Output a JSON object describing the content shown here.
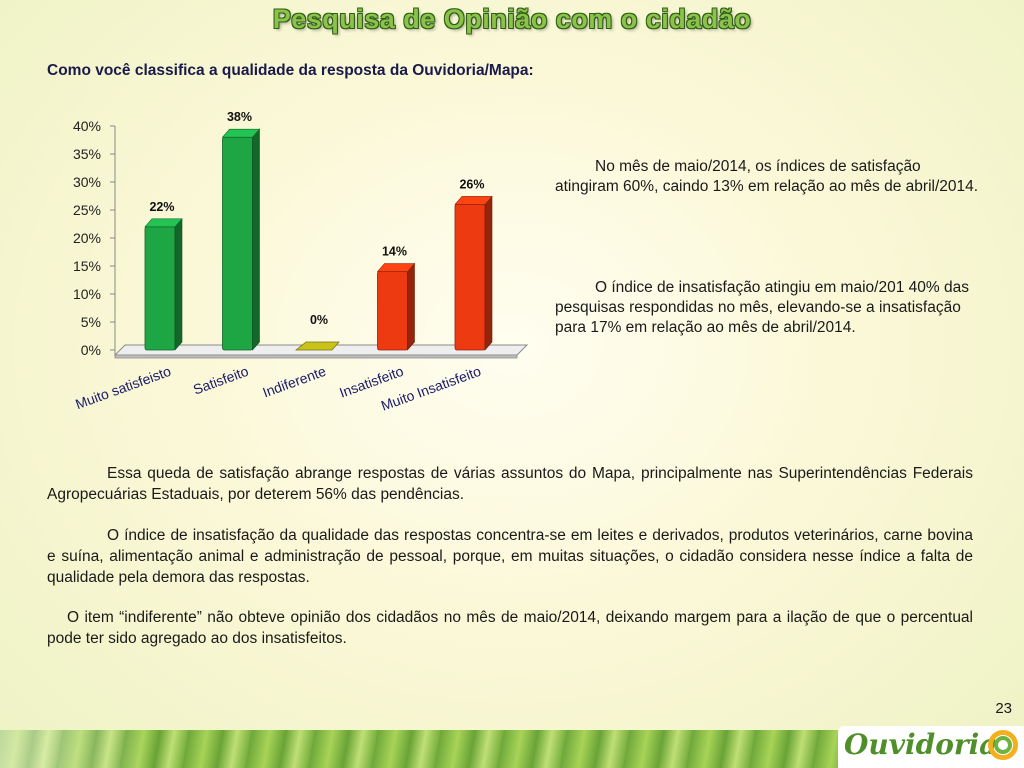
{
  "title": "Pesquisa de Opinião com o cidadão",
  "question": "Como você classifica a qualidade da resposta da Ouvidoria/Mapa:",
  "chart_data": {
    "type": "bar",
    "categories": [
      "Muito satisfeisto",
      "Satisfeito",
      "Indiferente",
      "Insatisfeito",
      "Muito Insatisfeito"
    ],
    "values": [
      22,
      38,
      0,
      14,
      26
    ],
    "data_labels": [
      "22%",
      "38%",
      "0%",
      "14%",
      "26%"
    ],
    "colors": [
      "#1ea645",
      "#1ea645",
      "#c8c21a",
      "#ee3a10",
      "#ee3a10"
    ],
    "y_ticks": [
      "0%",
      "5%",
      "10%",
      "15%",
      "20%",
      "25%",
      "30%",
      "35%",
      "40%"
    ],
    "ylim": [
      0,
      40
    ],
    "grid": false,
    "style": "3d-column"
  },
  "side_text_1": "No mês de maio/2014, os  índices de satisfação atingiram 60%, caindo 13% em relação ao mês de abril/2014.",
  "side_text_2": "O índice de insatisfação atingiu em maio/201 40% das pesquisas respondidas no mês, elevando-se a insatisfação para 17% em relação ao mês de abril/2014.",
  "paragraph_1": "Essa queda de satisfação abrange respostas de várias assuntos do Mapa, principalmente nas Superintendências Federais Agropecuárias Estaduais, por deterem 56% das pendências.",
  "paragraph_2": "O índice de insatisfação da qualidade das respostas concentra-se em leites e derivados, produtos veterinários, carne bovina e suína, alimentação animal e administração de pessoal, porque, em muitas situações, o cidadão considera nesse índice a falta de qualidade pela demora das respostas.",
  "paragraph_3": "O item “indiferente” não obteve opinião dos cidadãos no mês de maio/2014, deixando margem para a ilação de que o percentual pode ter sido agregado ao dos  insatisfeitos.",
  "page_number": "23",
  "logo_text": "Ouvidoria"
}
